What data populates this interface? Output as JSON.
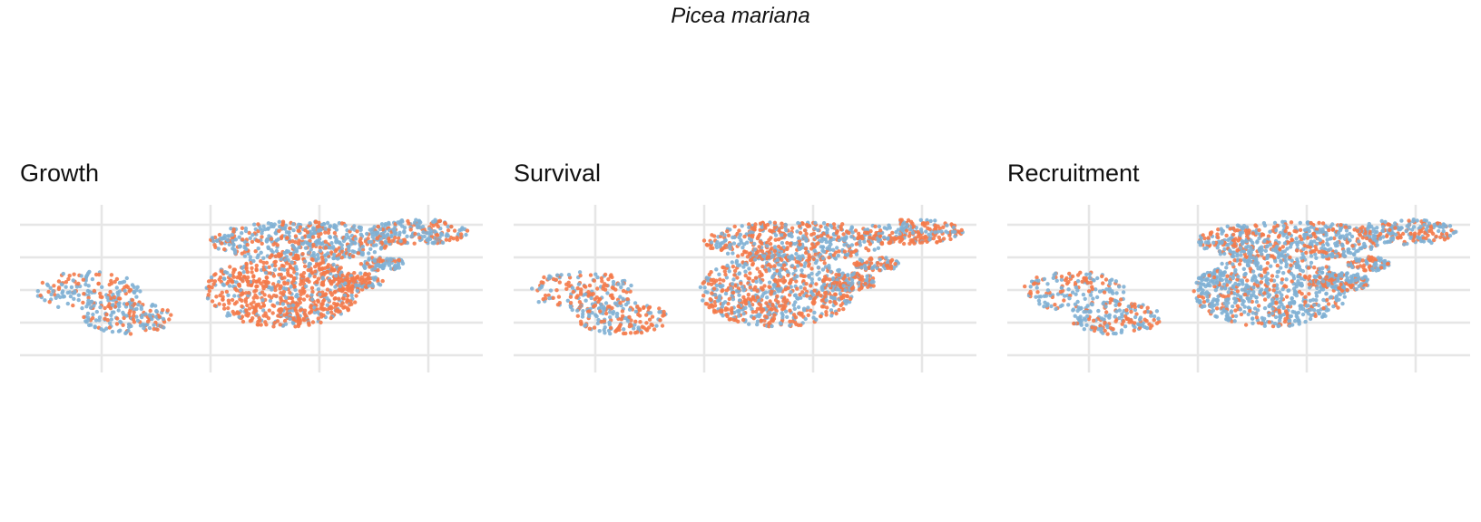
{
  "title": "Picea mariana",
  "colors": {
    "orange": "#F47A4A",
    "blue": "#80B0D4",
    "grid": "#e6e6e6"
  },
  "chart_data": [
    {
      "type": "scatter",
      "title": "Growth",
      "grid": true,
      "dominant": "mixed-orange-south"
    },
    {
      "type": "scatter",
      "title": "Survival",
      "grid": true,
      "dominant": "mixed-orange"
    },
    {
      "type": "scatter",
      "title": "Recruitment",
      "grid": true,
      "dominant": "mixed-blue"
    }
  ]
}
